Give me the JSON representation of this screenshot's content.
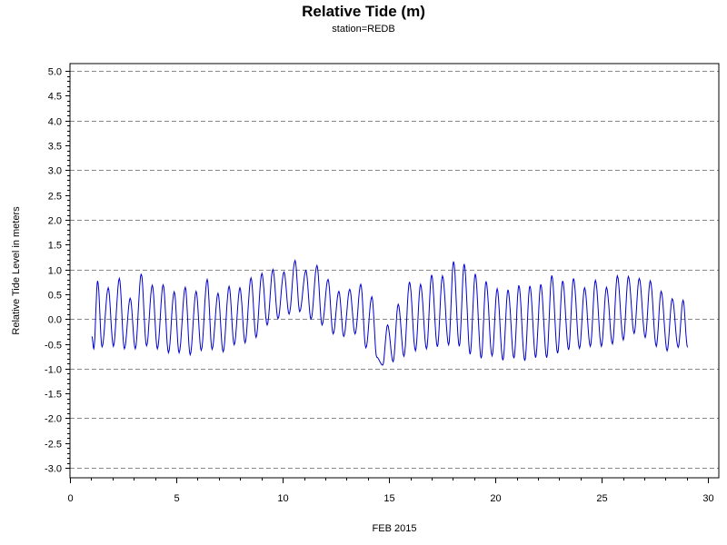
{
  "chart_data": {
    "type": "line",
    "title": "Relative Tide (m)",
    "subtitle": "station=REDB",
    "xlabel": "FEB 2015",
    "ylabel": "Relative Tide Level in meters",
    "xlim": [
      0,
      30.5
    ],
    "ylim": [
      -3.2,
      5.15
    ],
    "x_ticks": [
      0,
      5,
      10,
      15,
      20,
      25,
      30
    ],
    "y_ticks": [
      -3.0,
      -2.5,
      -2.0,
      -1.5,
      -1.0,
      -0.5,
      0.0,
      0.5,
      1.0,
      1.5,
      2.0,
      2.5,
      3.0,
      3.5,
      4.0,
      4.5,
      5.0
    ],
    "y_tick_labels": [
      "-3.0",
      "-2.5",
      "-2.0",
      "-1.5",
      "-1.0",
      "-0.5",
      "0.0",
      "0.5",
      "1.0",
      "1.5",
      "2.0",
      "2.5",
      "3.0",
      "3.5",
      "4.0",
      "4.5",
      "5.0"
    ],
    "y_gridlines": [
      -3.0,
      -2.0,
      -1.0,
      0.0,
      1.0,
      2.0,
      3.0,
      4.0,
      5.0
    ],
    "grid": "dashed horizontal",
    "line_color": "#0000cc",
    "series": [
      {
        "x": [
          1.03,
          1.12,
          1.3,
          1.51,
          1.8,
          2.04,
          2.32,
          2.56,
          2.83,
          3.07,
          3.35,
          3.6,
          3.87,
          4.11,
          4.38,
          4.63,
          4.9,
          5.13,
          5.42,
          5.65,
          5.93,
          6.17,
          6.45,
          6.68,
          6.96,
          7.2,
          7.48,
          7.72,
          7.99,
          8.23,
          8.51,
          8.75,
          9.02,
          9.27,
          9.54,
          9.78,
          10.06,
          10.3,
          10.58,
          10.8,
          11.09,
          11.33,
          11.61,
          11.85,
          12.13,
          12.37,
          12.64,
          12.87,
          13.15,
          13.4,
          13.67,
          13.91,
          14.19,
          14.42,
          14.7,
          14.93,
          15.19,
          15.43,
          15.7,
          15.96,
          16.24,
          16.48,
          16.76,
          17.0,
          17.27,
          17.51,
          17.8,
          18.03,
          18.3,
          18.53,
          18.81,
          19.05,
          19.33,
          19.56,
          19.84,
          20.08,
          20.35,
          20.59,
          20.87,
          21.1,
          21.38,
          21.62,
          21.89,
          22.13,
          22.41,
          22.65,
          22.92,
          23.16,
          23.44,
          23.67,
          23.95,
          24.19,
          24.46,
          24.7,
          24.98,
          25.22,
          25.5,
          25.73,
          26.01,
          26.25,
          26.52,
          26.76,
          27.04,
          27.28,
          27.56,
          27.79,
          28.07,
          28.31,
          28.59,
          28.82,
          29.03
        ],
        "y": [
          -0.35,
          -0.6,
          0.77,
          -0.56,
          0.63,
          -0.55,
          0.82,
          -0.6,
          0.42,
          -0.6,
          0.91,
          -0.54,
          0.68,
          -0.6,
          0.69,
          -0.68,
          0.55,
          -0.68,
          0.64,
          -0.72,
          0.56,
          -0.63,
          0.8,
          -0.61,
          0.52,
          -0.66,
          0.66,
          -0.52,
          0.63,
          -0.48,
          0.83,
          -0.37,
          0.92,
          -0.12,
          1.0,
          0.01,
          0.95,
          0.1,
          1.18,
          0.15,
          0.98,
          -0.0,
          1.08,
          -0.12,
          0.8,
          -0.3,
          0.56,
          -0.35,
          0.6,
          -0.3,
          0.7,
          -0.58,
          0.45,
          -0.77,
          -0.93,
          -0.12,
          -0.86,
          0.3,
          -0.75,
          0.75,
          -0.64,
          0.7,
          -0.6,
          0.89,
          -0.56,
          0.87,
          -0.52,
          1.16,
          -0.55,
          1.11,
          -0.71,
          0.91,
          -0.79,
          0.76,
          -0.74,
          0.61,
          -0.83,
          0.59,
          -0.79,
          0.68,
          -0.84,
          0.67,
          -0.78,
          0.7,
          -0.78,
          0.88,
          -0.69,
          0.77,
          -0.62,
          0.82,
          -0.59,
          0.63,
          -0.55,
          0.78,
          -0.55,
          0.64,
          -0.5,
          0.87,
          -0.42,
          0.86,
          -0.29,
          0.82,
          -0.37,
          0.77,
          -0.55,
          0.56,
          -0.64,
          0.41,
          -0.57,
          0.38,
          -0.57
        ]
      }
    ]
  }
}
